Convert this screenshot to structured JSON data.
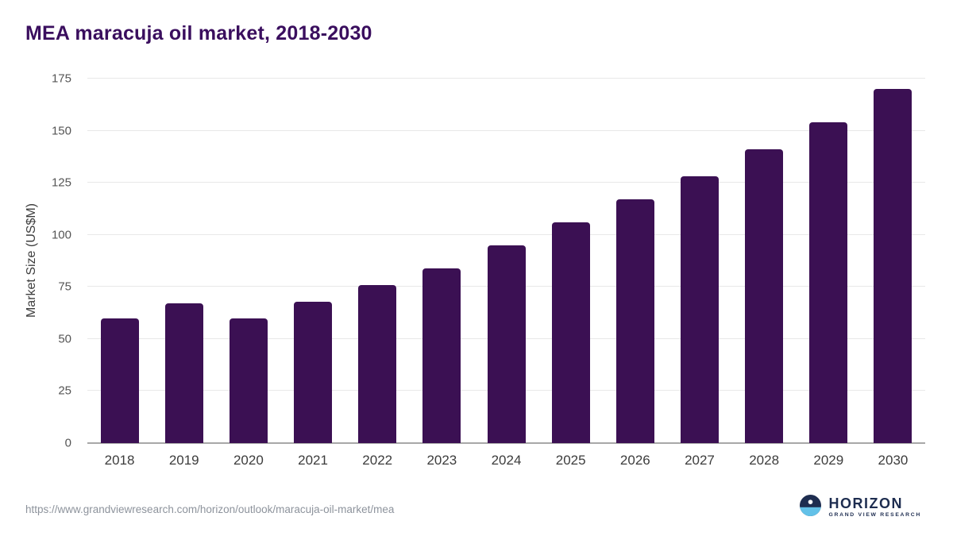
{
  "page": {
    "title": "MEA maracuja oil market, 2018-2030",
    "source_url": "https://www.grandviewresearch.com/horizon/outlook/maracuja-oil-market/mea",
    "brand": {
      "name": "HORIZON",
      "sub": "GRAND VIEW RESEARCH"
    }
  },
  "chart_data": {
    "type": "bar",
    "title": "MEA maracuja oil market, 2018-2030",
    "categories": [
      "2018",
      "2019",
      "2020",
      "2021",
      "2022",
      "2023",
      "2024",
      "2025",
      "2026",
      "2027",
      "2028",
      "2029",
      "2030"
    ],
    "values": [
      60,
      67,
      60,
      68,
      76,
      84,
      95,
      106,
      117,
      128,
      141,
      154,
      170
    ],
    "xlabel": "",
    "ylabel": "Market Size (US$M)",
    "ylim": [
      0,
      175
    ],
    "yticks": [
      0,
      25,
      50,
      75,
      100,
      125,
      150,
      175
    ],
    "grid": true,
    "legend": "none",
    "bar_color": "#3b1053"
  },
  "colors": {
    "bar": "#3b1053",
    "title": "#3a0e5e",
    "axis_text": "#555555",
    "gridline": "#e8e8e8",
    "baseline": "#a8a8a8",
    "brand_navy": "#1e2d50",
    "brand_blue": "#63c1e8"
  }
}
